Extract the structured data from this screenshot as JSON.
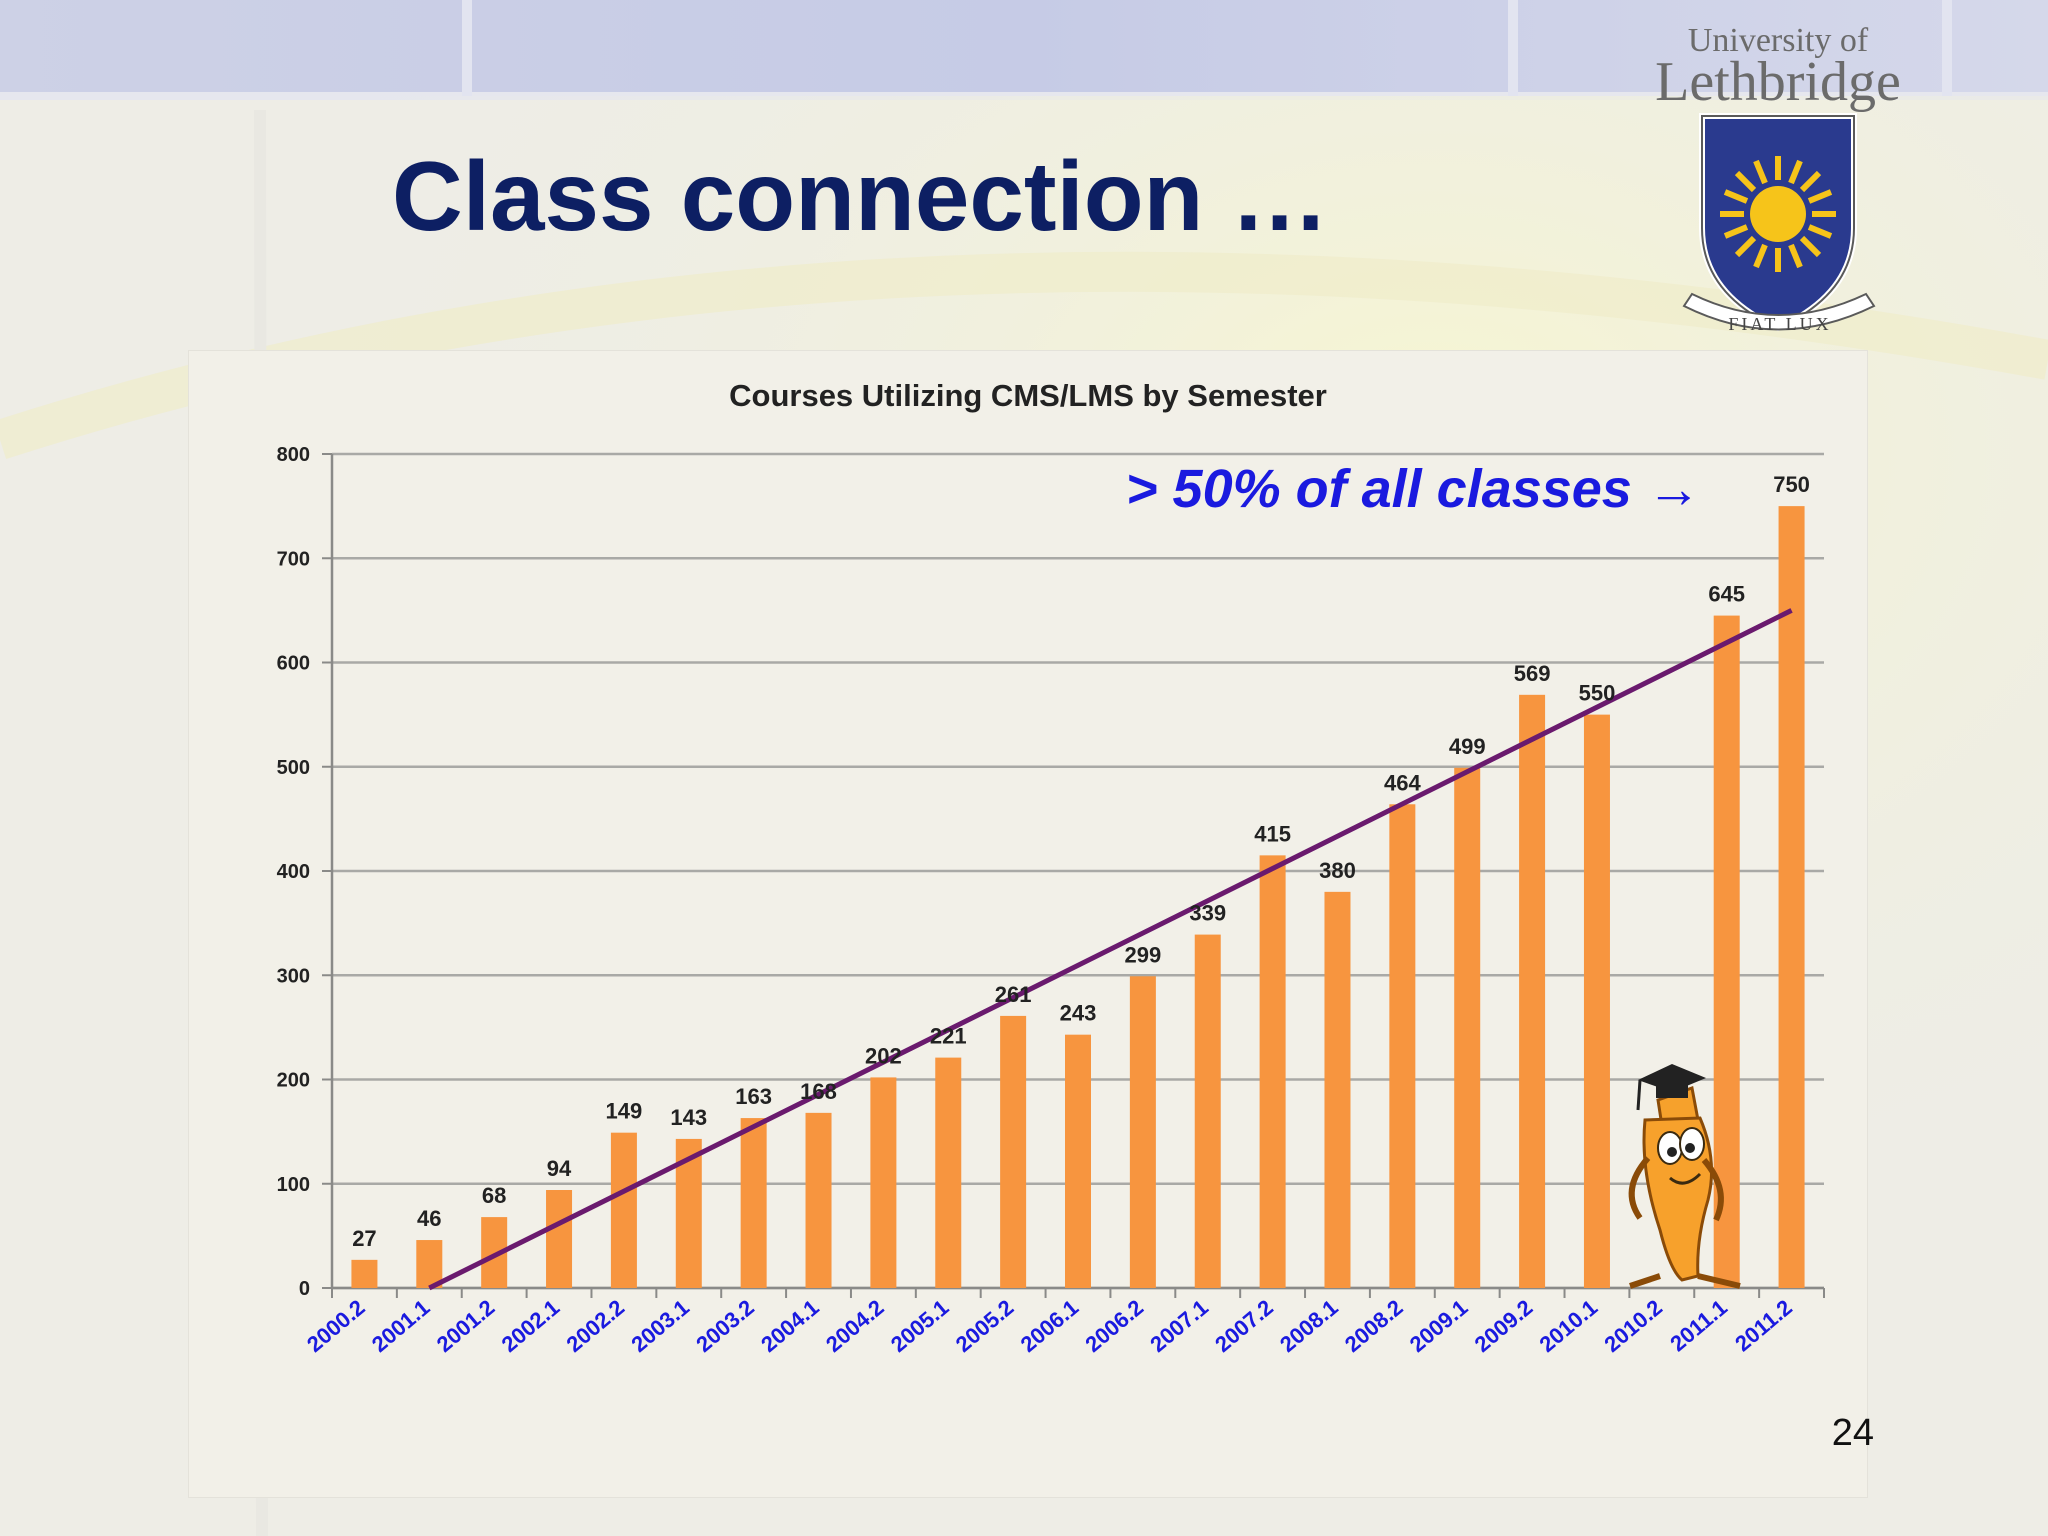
{
  "slide": {
    "title": "Class connection …",
    "page_number": "24",
    "logo_text_line1": "University of",
    "logo_text_line2": "Lethbridge",
    "logo_motto": "FIAT LUX",
    "colors": {
      "title": "#0d1f63",
      "bar": "#f7953f",
      "trend": "#6a1a6e",
      "annotation": "#1a1adf",
      "xtick": "#1a1adf"
    }
  },
  "chart_data": {
    "type": "bar",
    "title": "Courses Utilizing CMS/LMS by Semester",
    "xlabel": "",
    "ylabel": "",
    "ylim": [
      0,
      800
    ],
    "yticks": [
      "0",
      "100",
      "200",
      "300",
      "400",
      "500",
      "600",
      "700",
      "800"
    ],
    "categories": [
      "2000.2",
      "2001.1",
      "2001.2",
      "2002.1",
      "2002.2",
      "2003.1",
      "2003.2",
      "2004.1",
      "2004.2",
      "2005.1",
      "2005.2",
      "2006.1",
      "2006.2",
      "2007.1",
      "2007.2",
      "2008.1",
      "2008.2",
      "2009.1",
      "2009.2",
      "2010.1",
      "2010.2",
      "2011.1",
      "2011.2"
    ],
    "series": [
      {
        "values": [
          27,
          46,
          68,
          94,
          149,
          143,
          163,
          168,
          202,
          221,
          261,
          243,
          299,
          339,
          415,
          380,
          464,
          499,
          569,
          550,
          null,
          645,
          750
        ]
      }
    ],
    "data_labels": [
      "27",
      "46",
      "68",
      "94",
      "149",
      "143",
      "163",
      "168",
      "202",
      "221",
      "261",
      "243",
      "299",
      "339",
      "415",
      "380",
      "464",
      "499",
      "569",
      "550",
      "",
      "645",
      "750"
    ],
    "trendline": {
      "type": "linear",
      "from": {
        "category": "2001.1",
        "value": 0
      },
      "to": {
        "category": "2011.2",
        "value": 650
      }
    },
    "annotation": "> 50% of all classes →",
    "grid": true,
    "legend": "none"
  }
}
